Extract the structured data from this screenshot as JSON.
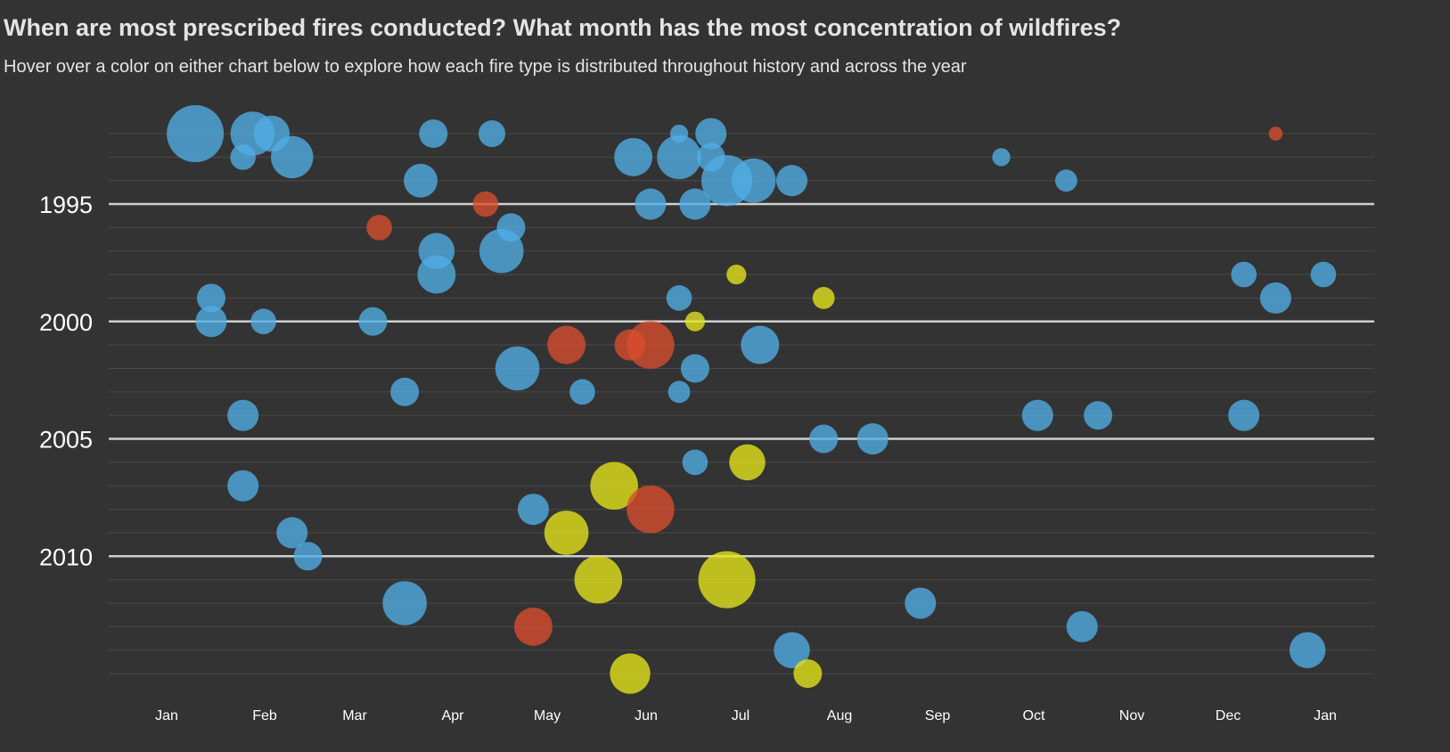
{
  "header": {
    "title": "When are most prescribed fires conducted? What month has the most concentration of wildfires?",
    "subtitle": "Hover over a color on either chart below to explore how each fire type is distributed throughout history and across the year"
  },
  "colors": {
    "background": "#333333",
    "gridline_minor": "#4a4a4a",
    "gridline_major": "#cfcfcf",
    "text": "#ffffff"
  },
  "chart_data": {
    "type": "scatter",
    "title": "When are most prescribed fires conducted? What month has the most concentration of wildfires?",
    "subtitle": "Hover over a color on either chart below to explore how each fire type is distributed throughout history and across the year",
    "x_axis": {
      "type": "date-of-year",
      "tick_labels": [
        "Jan",
        "Feb",
        "Mar",
        "Apr",
        "May",
        "Jun",
        "Jul",
        "Aug",
        "Sep",
        "Oct",
        "Nov",
        "Dec",
        "Jan"
      ]
    },
    "y_axis": {
      "range": [
        1992,
        2015
      ],
      "tick_labels": [
        "1995",
        "2000",
        "2005",
        "2010"
      ],
      "tick_values": [
        1995,
        2000,
        2005,
        2010
      ]
    },
    "series_colors": [
      "#4faee6",
      "#d94d2c",
      "#e6e61a"
    ],
    "note_sizes": "Bubble area encodes fire size; values estimated from image",
    "points": [
      {
        "year": 1992,
        "date": "Jan 10",
        "size": 100,
        "color": 0
      },
      {
        "year": 1992,
        "date": "Jan 28",
        "size": 60,
        "color": 0
      },
      {
        "year": 1992,
        "date": "Jan 34",
        "size": 40,
        "color": 0
      },
      {
        "year": 1992,
        "date": "Mar 24",
        "size": 25,
        "color": 0
      },
      {
        "year": 1992,
        "date": "Apr 12",
        "size": 22,
        "color": 0
      },
      {
        "year": 1992,
        "date": "Jun 20",
        "size": 30,
        "color": 0
      },
      {
        "year": 1992,
        "date": "Jun 10",
        "size": 10,
        "color": 0
      },
      {
        "year": 1992,
        "date": "Dec 15",
        "size": 6,
        "color": 1
      },
      {
        "year": 1993,
        "date": "Jan 25",
        "size": 20,
        "color": 0
      },
      {
        "year": 1993,
        "date": "Feb 10",
        "size": 55,
        "color": 0
      },
      {
        "year": 1993,
        "date": "May 26",
        "size": 45,
        "color": 0
      },
      {
        "year": 1993,
        "date": "Jun 10",
        "size": 60,
        "color": 0
      },
      {
        "year": 1993,
        "date": "Jun 20",
        "size": 25,
        "color": 0
      },
      {
        "year": 1993,
        "date": "Sep 20",
        "size": 10,
        "color": 0
      },
      {
        "year": 1994,
        "date": "Mar 20",
        "size": 35,
        "color": 0
      },
      {
        "year": 1994,
        "date": "Jun 25",
        "size": 80,
        "color": 0
      },
      {
        "year": 1994,
        "date": "Jul 3",
        "size": 60,
        "color": 0
      },
      {
        "year": 1994,
        "date": "Jul 15",
        "size": 30,
        "color": 0
      },
      {
        "year": 1994,
        "date": "Oct 10",
        "size": 15,
        "color": 0
      },
      {
        "year": 1995,
        "date": "Apr 10",
        "size": 20,
        "color": 1
      },
      {
        "year": 1995,
        "date": "Jun 1",
        "size": 30,
        "color": 0
      },
      {
        "year": 1995,
        "date": "Jun 15",
        "size": 30,
        "color": 0
      },
      {
        "year": 1996,
        "date": "Mar 7",
        "size": 20,
        "color": 1
      },
      {
        "year": 1996,
        "date": "Apr 18",
        "size": 25,
        "color": 0
      },
      {
        "year": 1997,
        "date": "Mar 25",
        "size": 40,
        "color": 0
      },
      {
        "year": 1997,
        "date": "Apr 15",
        "size": 60,
        "color": 0
      },
      {
        "year": 1998,
        "date": "Mar 25",
        "size": 45,
        "color": 0
      },
      {
        "year": 1998,
        "date": "Jun 28",
        "size": 12,
        "color": 2
      },
      {
        "year": 1998,
        "date": "Dec 5",
        "size": 20,
        "color": 0
      },
      {
        "year": 1998,
        "date": "Dec 30",
        "size": 20,
        "color": 0
      },
      {
        "year": 1999,
        "date": "Jan 15",
        "size": 25,
        "color": 0
      },
      {
        "year": 1999,
        "date": "Jun 10",
        "size": 20,
        "color": 0
      },
      {
        "year": 1999,
        "date": "Jul 25",
        "size": 15,
        "color": 2
      },
      {
        "year": 1999,
        "date": "Dec 15",
        "size": 30,
        "color": 0
      },
      {
        "year": 2000,
        "date": "Jan 15",
        "size": 30,
        "color": 0
      },
      {
        "year": 2000,
        "date": "Feb 1",
        "size": 20,
        "color": 0
      },
      {
        "year": 2000,
        "date": "Mar 5",
        "size": 25,
        "color": 0
      },
      {
        "year": 2000,
        "date": "Jun 15",
        "size": 12,
        "color": 2
      },
      {
        "year": 2001,
        "date": "May 5",
        "size": 45,
        "color": 1
      },
      {
        "year": 2001,
        "date": "May 25",
        "size": 30,
        "color": 1
      },
      {
        "year": 2001,
        "date": "Jun 1",
        "size": 70,
        "color": 1
      },
      {
        "year": 2001,
        "date": "Jul 5",
        "size": 45,
        "color": 0
      },
      {
        "year": 2002,
        "date": "Apr 20",
        "size": 60,
        "color": 0
      },
      {
        "year": 2002,
        "date": "Jun 15",
        "size": 25,
        "color": 0
      },
      {
        "year": 2003,
        "date": "Mar 15",
        "size": 25,
        "color": 0
      },
      {
        "year": 2003,
        "date": "May 10",
        "size": 20,
        "color": 0
      },
      {
        "year": 2003,
        "date": "Jun 10",
        "size": 15,
        "color": 0
      },
      {
        "year": 2004,
        "date": "Jan 25",
        "size": 30,
        "color": 0
      },
      {
        "year": 2004,
        "date": "Oct 1",
        "size": 30,
        "color": 0
      },
      {
        "year": 2004,
        "date": "Oct 20",
        "size": 25,
        "color": 0
      },
      {
        "year": 2004,
        "date": "Dec 5",
        "size": 30,
        "color": 0
      },
      {
        "year": 2005,
        "date": "Jul 25",
        "size": 25,
        "color": 0
      },
      {
        "year": 2005,
        "date": "Aug 10",
        "size": 30,
        "color": 0
      },
      {
        "year": 2006,
        "date": "Jul 1",
        "size": 40,
        "color": 2
      },
      {
        "year": 2006,
        "date": "Jun 15",
        "size": 20,
        "color": 0
      },
      {
        "year": 2007,
        "date": "May 20",
        "size": 70,
        "color": 2
      },
      {
        "year": 2007,
        "date": "Jan 25",
        "size": 30,
        "color": 0
      },
      {
        "year": 2008,
        "date": "Jun 1",
        "size": 70,
        "color": 1
      },
      {
        "year": 2008,
        "date": "Apr 25",
        "size": 30,
        "color": 0
      },
      {
        "year": 2009,
        "date": "May 5",
        "size": 60,
        "color": 2
      },
      {
        "year": 2009,
        "date": "Feb 10",
        "size": 30,
        "color": 0
      },
      {
        "year": 2010,
        "date": "Feb 15",
        "size": 25,
        "color": 0
      },
      {
        "year": 2011,
        "date": "May 15",
        "size": 70,
        "color": 2
      },
      {
        "year": 2011,
        "date": "Jun 25",
        "size": 100,
        "color": 2
      },
      {
        "year": 2012,
        "date": "Mar 15",
        "size": 60,
        "color": 0
      },
      {
        "year": 2012,
        "date": "Aug 25",
        "size": 30,
        "color": 0
      },
      {
        "year": 2013,
        "date": "Apr 25",
        "size": 45,
        "color": 1
      },
      {
        "year": 2013,
        "date": "Oct 15",
        "size": 30,
        "color": 0
      },
      {
        "year": 2014,
        "date": "Jul 15",
        "size": 40,
        "color": 0
      },
      {
        "year": 2014,
        "date": "Dec 25",
        "size": 40,
        "color": 0
      },
      {
        "year": 2015,
        "date": "May 25",
        "size": 50,
        "color": 2
      },
      {
        "year": 2015,
        "date": "Jul 20",
        "size": 25,
        "color": 2
      }
    ]
  }
}
